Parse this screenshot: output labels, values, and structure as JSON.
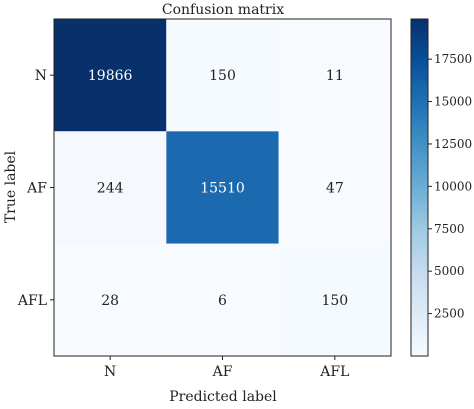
{
  "chart_data": {
    "type": "heatmap",
    "title": "Confusion matrix",
    "xlabel": "Predicted label",
    "ylabel": "True label",
    "x_categories": [
      "N",
      "AF",
      "AFL"
    ],
    "y_categories": [
      "N",
      "AF",
      "AFL"
    ],
    "values": [
      [
        19866,
        150,
        11
      ],
      [
        244,
        15510,
        47
      ],
      [
        28,
        6,
        150
      ]
    ],
    "colormap": "Blues",
    "colorbar": {
      "min": 0,
      "max": 19866,
      "ticks": [
        2500,
        5000,
        7500,
        10000,
        12500,
        15000,
        17500
      ]
    },
    "colors": {
      "low": "#f7fbff",
      "high": "#08306b",
      "text_dark": "#222222",
      "text_light": "#ffffff"
    }
  }
}
